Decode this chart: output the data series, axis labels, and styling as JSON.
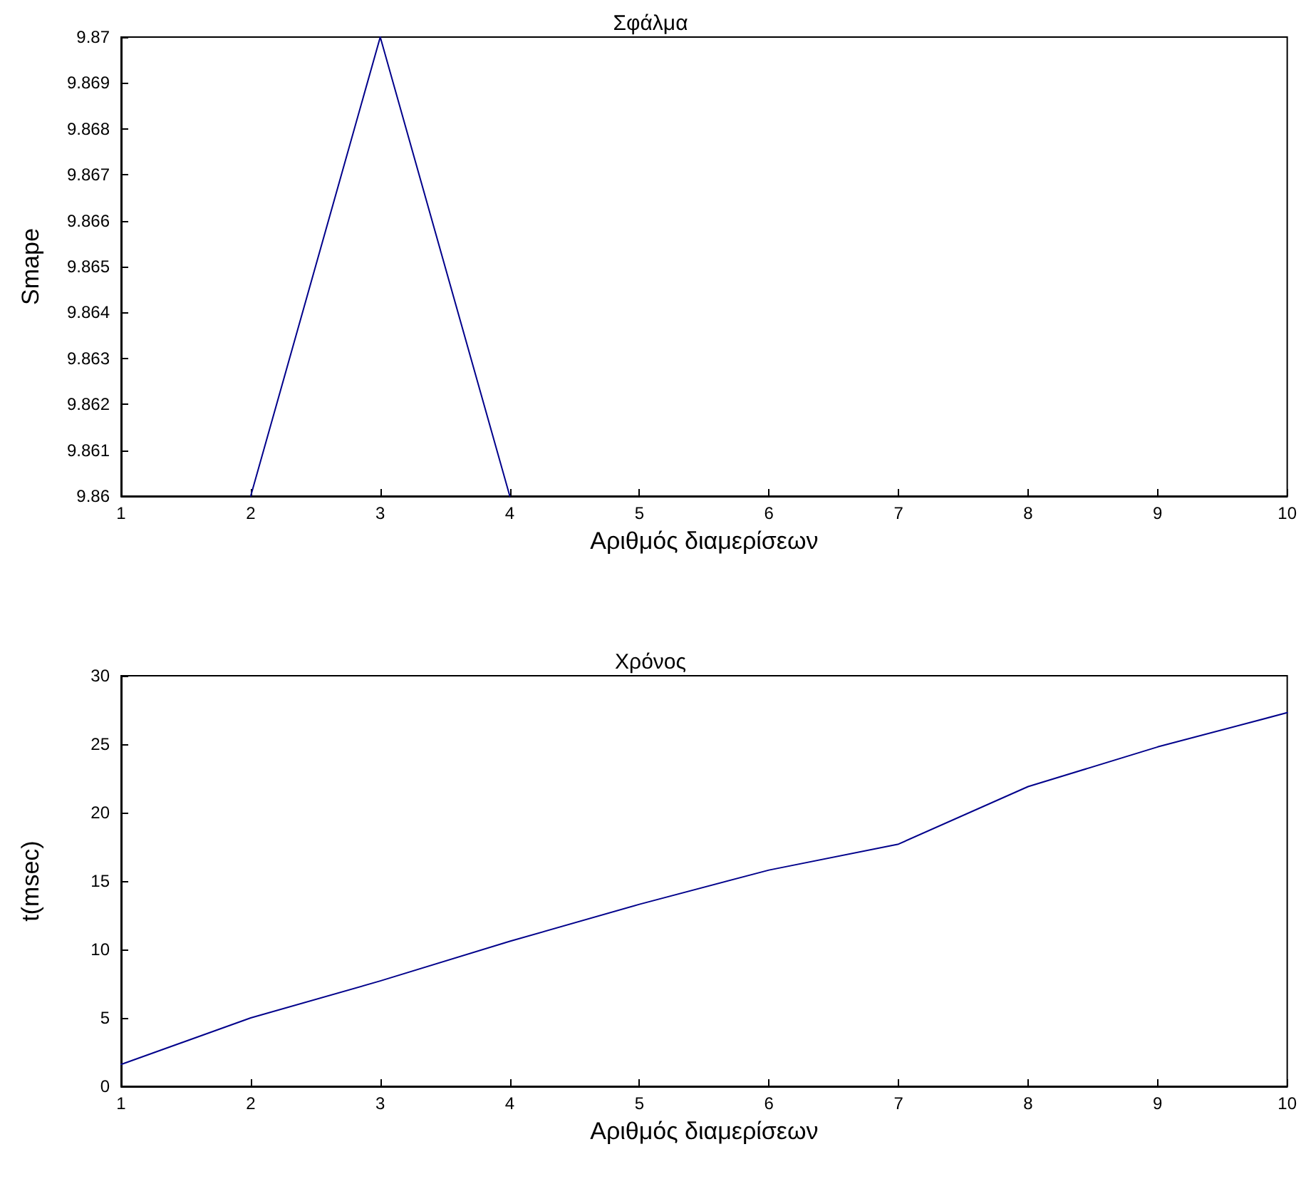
{
  "chart_data": [
    {
      "type": "line",
      "title": "Σφάλμα",
      "xlabel": "Αριθμός διαμερίσεων",
      "ylabel": "Smape",
      "series": [
        {
          "color": "#00008b",
          "x": [
            2,
            3,
            4
          ],
          "values": [
            9.86,
            9.87,
            9.86
          ]
        }
      ],
      "xlim": [
        1,
        10
      ],
      "xticks": [
        1,
        2,
        3,
        4,
        5,
        6,
        7,
        8,
        9,
        10
      ],
      "ylim": [
        9.86,
        9.87
      ],
      "yticks": [
        9.86,
        9.861,
        9.862,
        9.863,
        9.864,
        9.865,
        9.866,
        9.867,
        9.868,
        9.869,
        9.87
      ],
      "grid": false,
      "marker": "none",
      "line_style": "solid"
    },
    {
      "type": "line",
      "title": "Χρόνος",
      "xlabel": "Αριθμός διαμερίσεων",
      "ylabel": "t(msec)",
      "x": [
        1,
        2,
        3,
        4,
        5,
        6,
        7,
        8,
        9,
        10
      ],
      "series": [
        {
          "color": "#00008b",
          "values": [
            1.6,
            5.0,
            7.7,
            10.6,
            13.3,
            15.8,
            17.7,
            21.9,
            24.8,
            27.3
          ]
        }
      ],
      "xlim": [
        1,
        10
      ],
      "xticks": [
        1,
        2,
        3,
        4,
        5,
        6,
        7,
        8,
        9,
        10
      ],
      "ylim": [
        0,
        30
      ],
      "yticks": [
        0,
        5,
        10,
        15,
        20,
        25,
        30
      ],
      "grid": false,
      "marker": "none",
      "line_style": "solid"
    }
  ]
}
